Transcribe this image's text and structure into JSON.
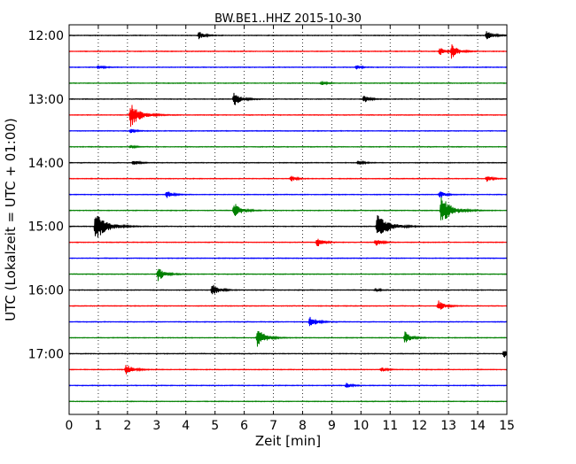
{
  "chart_data": {
    "type": "line",
    "title": "BW.BE1..HHZ 2015-10-30",
    "xlabel": "Zeit  [min]",
    "ylabel": "UTC (Lokalzeit = UTC + 01:00)",
    "xlim": [
      0,
      15
    ],
    "xticks": [
      0,
      1,
      2,
      3,
      4,
      5,
      6,
      7,
      8,
      9,
      10,
      11,
      12,
      13,
      14,
      15
    ],
    "xtick_labels": [
      "0",
      "1",
      "2",
      "3",
      "4",
      "5",
      "6",
      "7",
      "8",
      "9",
      "10",
      "11",
      "12",
      "13",
      "14",
      "15"
    ],
    "ytick_labels": [
      "12:00",
      "13:00",
      "14:00",
      "15:00",
      "16:00",
      "17:00"
    ],
    "ytick_trace_index": [
      0,
      4,
      8,
      12,
      16,
      20
    ],
    "grid": "vertical dotted",
    "trace_colors": [
      "#000000",
      "#ff0000",
      "#0000ff",
      "#008000"
    ],
    "traces_count": 24,
    "events": [
      {
        "trace": 0,
        "t": 4.45,
        "amp": 0.5
      },
      {
        "trace": 0,
        "t": 14.3,
        "amp": 0.7
      },
      {
        "trace": 1,
        "t": 12.7,
        "amp": 0.5
      },
      {
        "trace": 1,
        "t": 13.1,
        "amp": 0.9
      },
      {
        "trace": 2,
        "t": 1.0,
        "amp": 0.35
      },
      {
        "trace": 2,
        "t": 9.85,
        "amp": 0.3
      },
      {
        "trace": 3,
        "t": 8.65,
        "amp": 0.3
      },
      {
        "trace": 4,
        "t": 5.65,
        "amp": 0.9
      },
      {
        "trace": 4,
        "t": 10.1,
        "amp": 0.5
      },
      {
        "trace": 5,
        "t": 2.1,
        "amp": 1.6
      },
      {
        "trace": 6,
        "t": 2.1,
        "amp": 0.3
      },
      {
        "trace": 7,
        "t": 2.1,
        "amp": 0.25
      },
      {
        "trace": 8,
        "t": 2.2,
        "amp": 0.4
      },
      {
        "trace": 8,
        "t": 9.9,
        "amp": 0.35
      },
      {
        "trace": 9,
        "t": 7.6,
        "amp": 0.4
      },
      {
        "trace": 9,
        "t": 14.3,
        "amp": 0.4
      },
      {
        "trace": 10,
        "t": 3.35,
        "amp": 0.5
      },
      {
        "trace": 10,
        "t": 12.7,
        "amp": 0.5
      },
      {
        "trace": 11,
        "t": 5.65,
        "amp": 1.0
      },
      {
        "trace": 11,
        "t": 12.75,
        "amp": 1.8
      },
      {
        "trace": 12,
        "t": 0.9,
        "amp": 1.9
      },
      {
        "trace": 12,
        "t": 10.55,
        "amp": 1.9
      },
      {
        "trace": 13,
        "t": 8.5,
        "amp": 0.6
      },
      {
        "trace": 13,
        "t": 10.5,
        "amp": 0.5
      },
      {
        "trace": 15,
        "t": 3.05,
        "amp": 0.9
      },
      {
        "trace": 16,
        "t": 4.9,
        "amp": 0.8
      },
      {
        "trace": 16,
        "t": 10.5,
        "amp": 0.25
      },
      {
        "trace": 17,
        "t": 12.65,
        "amp": 0.7
      },
      {
        "trace": 18,
        "t": 8.25,
        "amp": 0.8
      },
      {
        "trace": 19,
        "t": 6.45,
        "amp": 1.2
      },
      {
        "trace": 19,
        "t": 11.5,
        "amp": 0.8
      },
      {
        "trace": 20,
        "t": 14.9,
        "amp": 0.5
      },
      {
        "trace": 21,
        "t": 1.95,
        "amp": 0.8
      },
      {
        "trace": 21,
        "t": 10.7,
        "amp": 0.3
      },
      {
        "trace": 22,
        "t": 9.5,
        "amp": 0.35
      }
    ]
  }
}
